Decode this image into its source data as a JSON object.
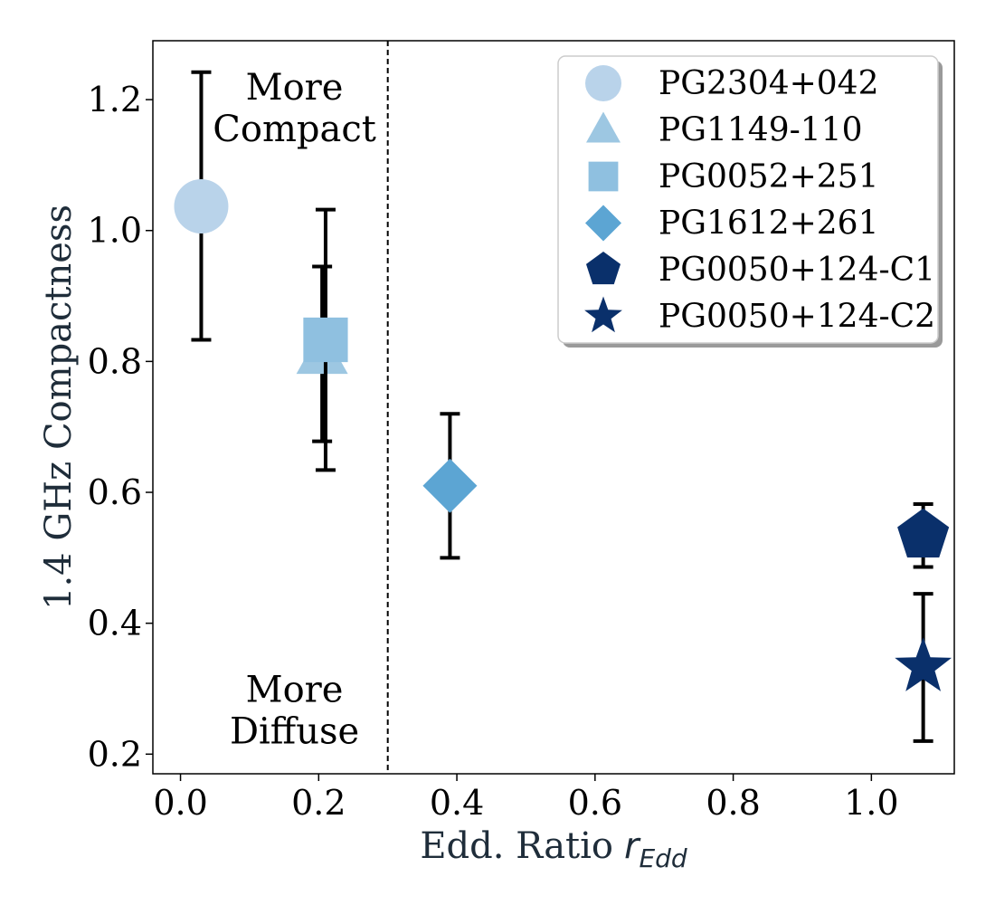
{
  "chart_data": {
    "type": "scatter",
    "xlabel": "Edd. Ratio",
    "xlabel_math_symbol": "r",
    "xlabel_math_subscript": "Edd",
    "ylabel": "1.4 GHz Compactness",
    "xlim": [
      -0.04,
      1.12
    ],
    "ylim": [
      0.17,
      1.29
    ],
    "xticks": [
      0.0,
      0.2,
      0.4,
      0.6,
      0.8,
      1.0
    ],
    "xtick_labels": [
      "0.0",
      "0.2",
      "0.4",
      "0.6",
      "0.8",
      "1.0"
    ],
    "yticks": [
      0.2,
      0.4,
      0.6,
      0.8,
      1.0,
      1.2
    ],
    "ytick_labels": [
      "0.2",
      "0.4",
      "0.6",
      "0.8",
      "1.0",
      "1.2"
    ],
    "vline_x": 0.3,
    "annotations": [
      {
        "lines": [
          "More",
          "Compact"
        ],
        "x": 0.165,
        "y": 1.2
      },
      {
        "lines": [
          "More",
          "Diffuse"
        ],
        "x": 0.165,
        "y": 0.28
      }
    ],
    "legend_position": "upper-right",
    "series": [
      {
        "name": "PG2304+042",
        "marker": "circle",
        "color": "#b9d3ea",
        "x": 0.03,
        "y": 1.037,
        "yerr_low": 0.833,
        "yerr_high": 1.242
      },
      {
        "name": "PG1149-110",
        "marker": "triangle",
        "color": "#9dc7e2",
        "x": 0.205,
        "y": 0.81,
        "yerr_low": 0.678,
        "yerr_high": 0.945
      },
      {
        "name": "PG0052+251",
        "marker": "square",
        "color": "#8fc0e0",
        "x": 0.21,
        "y": 0.833,
        "yerr_low": 0.634,
        "yerr_high": 1.032
      },
      {
        "name": "PG1612+261",
        "marker": "diamond",
        "color": "#5ca5d3",
        "x": 0.39,
        "y": 0.61,
        "yerr_low": 0.5,
        "yerr_high": 0.72
      },
      {
        "name": "PG0050+124-C1",
        "marker": "pentagon",
        "color": "#0a306b",
        "x": 1.075,
        "y": 0.534,
        "yerr_low": 0.486,
        "yerr_high": 0.582
      },
      {
        "name": "PG0050+124-C2",
        "marker": "star",
        "color": "#0a306b",
        "x": 1.075,
        "y": 0.333,
        "yerr_low": 0.22,
        "yerr_high": 0.445
      }
    ]
  }
}
